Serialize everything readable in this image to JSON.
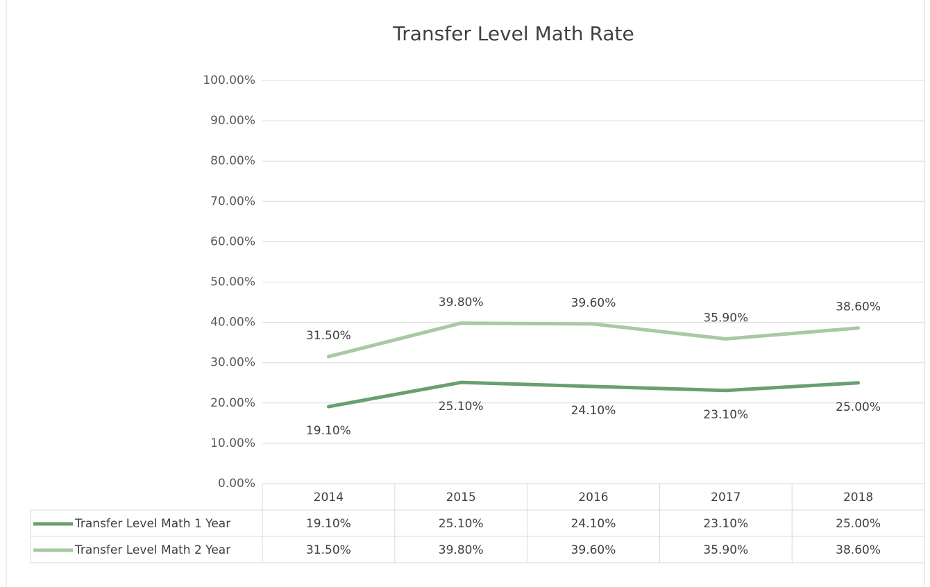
{
  "chart_data": {
    "type": "line",
    "title": "Transfer Level Math Rate",
    "categories": [
      "2014",
      "2015",
      "2016",
      "2017",
      "2018"
    ],
    "series": [
      {
        "name": "Transfer Level Math 1 Year",
        "color": "#6a9f6f",
        "values": [
          19.1,
          25.1,
          24.1,
          23.1,
          25.0
        ],
        "value_labels": [
          "19.10%",
          "25.10%",
          "24.10%",
          "23.10%",
          "25.00%"
        ]
      },
      {
        "name": "Transfer Level Math 2 Year",
        "color": "#a9c9a4",
        "values": [
          31.5,
          39.8,
          39.6,
          35.9,
          38.6
        ],
        "value_labels": [
          "31.50%",
          "39.80%",
          "39.60%",
          "35.90%",
          "38.60%"
        ]
      }
    ],
    "ylim": [
      0,
      100
    ],
    "yticks": [
      {
        "value": 0,
        "label": "0.00%"
      },
      {
        "value": 10,
        "label": "10.00%"
      },
      {
        "value": 20,
        "label": "20.00%"
      },
      {
        "value": 30,
        "label": "30.00%"
      },
      {
        "value": 40,
        "label": "40.00%"
      },
      {
        "value": 50,
        "label": "50.00%"
      },
      {
        "value": 60,
        "label": "60.00%"
      },
      {
        "value": 70,
        "label": "70.00%"
      },
      {
        "value": 80,
        "label": "80.00%"
      },
      {
        "value": 90,
        "label": "90.00%"
      },
      {
        "value": 100,
        "label": "100.00%"
      }
    ],
    "grid": true,
    "data_table": true
  }
}
